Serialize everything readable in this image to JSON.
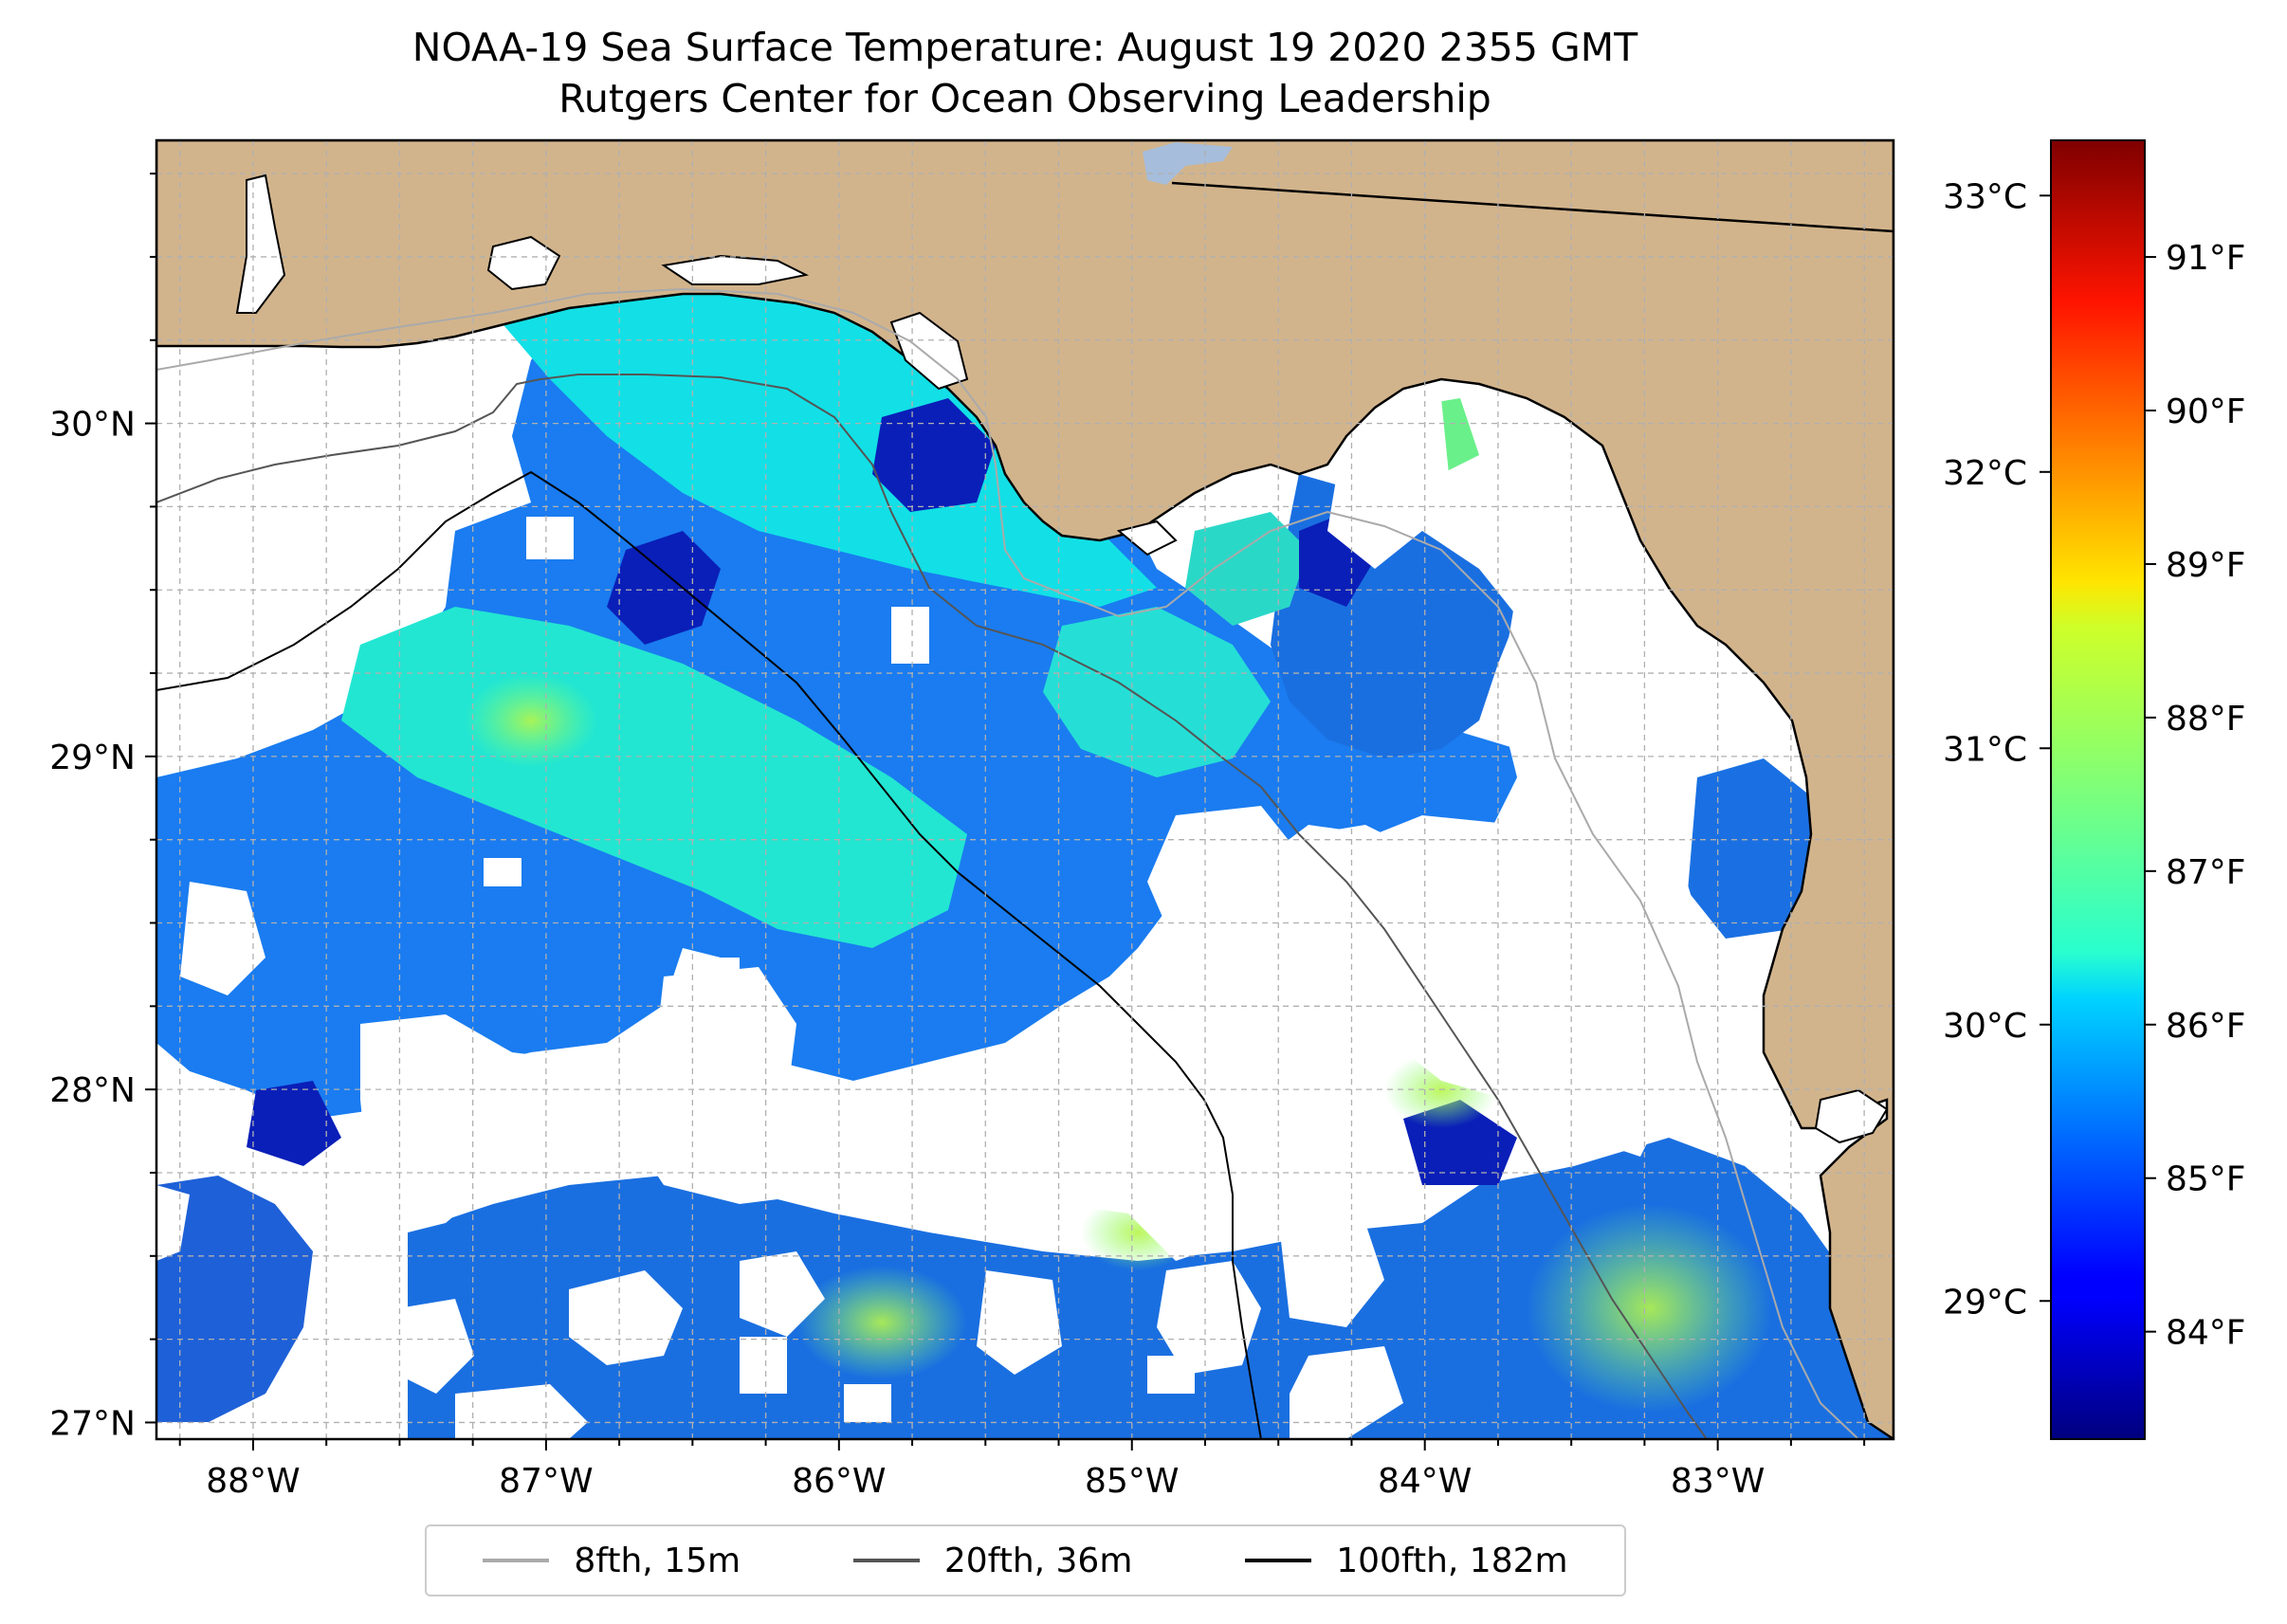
{
  "title": {
    "line1": "NOAA-19 Sea Surface Temperature: August 19 2020 2355 GMT",
    "line2": "Rutgers Center for Ocean Observing Leadership"
  },
  "map": {
    "lon_range": [
      -88.33,
      -82.4
    ],
    "lat_range": [
      26.95,
      30.85
    ],
    "lon_ticks": [
      {
        "value": -88,
        "label": "88°W"
      },
      {
        "value": -87,
        "label": "87°W"
      },
      {
        "value": -86,
        "label": "86°W"
      },
      {
        "value": -85,
        "label": "85°W"
      },
      {
        "value": -84,
        "label": "84°W"
      },
      {
        "value": -83,
        "label": "83°W"
      }
    ],
    "lat_ticks": [
      {
        "value": 27,
        "label": "27°N"
      },
      {
        "value": 28,
        "label": "28°N"
      },
      {
        "value": 29,
        "label": "29°N"
      },
      {
        "value": 30,
        "label": "30°N"
      }
    ],
    "colors": {
      "land": "#d2b48c",
      "water_no_data": "#ffffff",
      "lake": "#a6bddb",
      "isobath_8fth": "#aaaaaa",
      "isobath_20fth": "#555555",
      "isobath_100fth": "#000000"
    }
  },
  "colorbar": {
    "colormap": "jet",
    "range_c": [
      28.5,
      33.2
    ],
    "celsius_ticks": [
      {
        "value": 29,
        "label": "29°C"
      },
      {
        "value": 30,
        "label": "30°C"
      },
      {
        "value": 31,
        "label": "31°C"
      },
      {
        "value": 32,
        "label": "32°C"
      },
      {
        "value": 33,
        "label": "33°C"
      }
    ],
    "fahrenheit_ticks": [
      {
        "value": 84,
        "label": "84°F"
      },
      {
        "value": 85,
        "label": "85°F"
      },
      {
        "value": 86,
        "label": "86°F"
      },
      {
        "value": 87,
        "label": "87°F"
      },
      {
        "value": 88,
        "label": "88°F"
      },
      {
        "value": 89,
        "label": "89°F"
      },
      {
        "value": 90,
        "label": "90°F"
      },
      {
        "value": 91,
        "label": "91°F"
      }
    ]
  },
  "legend": {
    "entries": [
      {
        "label": "8fth, 15m",
        "color": "#aaaaaa"
      },
      {
        "label": "20fth, 36m",
        "color": "#555555"
      },
      {
        "label": "100fth, 182m",
        "color": "#000000"
      }
    ]
  }
}
